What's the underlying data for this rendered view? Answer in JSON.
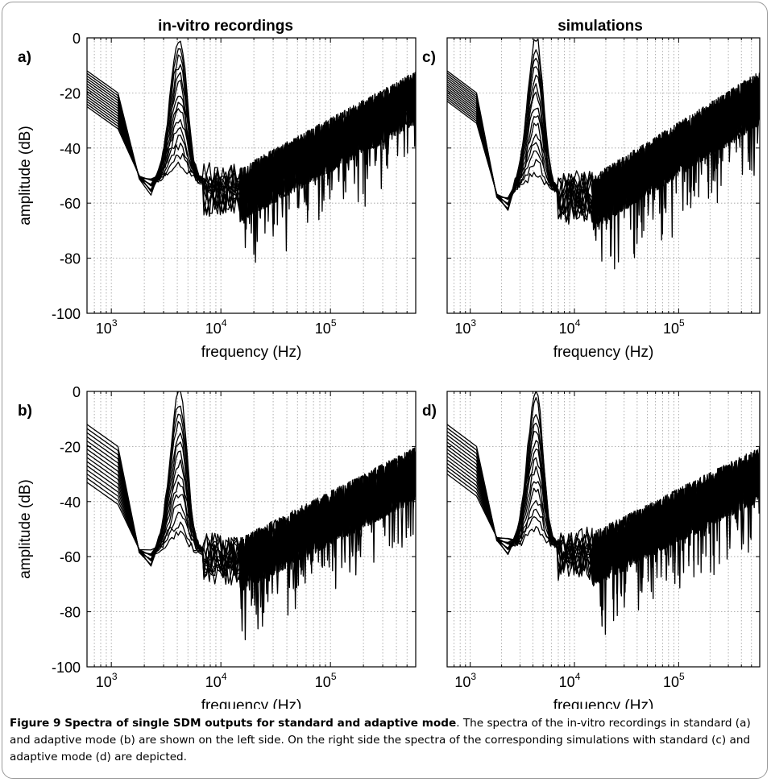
{
  "column_titles": [
    "in-vitro recordings",
    "simulations"
  ],
  "caption": {
    "label": "Figure 9 Spectra of single SDM outputs for standard and adaptive mode",
    "text": ". The spectra of the in-vitro recordings in standard (a) and adaptive mode (b) are shown on the left side. On the right side the spectra of the corresponding simulations with standard (c) and adaptive mode (d) are depicted."
  },
  "chart_data": [
    {
      "id": "a",
      "panel_label": "a)",
      "type": "line",
      "column": "in-vitro recordings",
      "xlabel": "frequency (Hz)",
      "ylabel": "amplitude (dB)",
      "xscale": "log",
      "xlim": [
        600,
        600000
      ],
      "ylim": [
        -100,
        0
      ],
      "yticks": [
        "0",
        "-20",
        "-40",
        "-60",
        "-80",
        "-100"
      ],
      "xticks": [
        {
          "base": "10",
          "exp": "3"
        },
        {
          "base": "10",
          "exp": "4"
        },
        {
          "base": "10",
          "exp": "5"
        }
      ],
      "grid": "dotted",
      "series_count": 15,
      "peak": {
        "freq_hz": 4200,
        "peak_db": 0,
        "low_end_db": [
          -12,
          -25
        ],
        "floor_db": -52,
        "tail_end_db": -22,
        "noise_db": 9
      },
      "lines_color": "#000000"
    },
    {
      "id": "c",
      "panel_label": "c)",
      "type": "line",
      "column": "simulations",
      "xlabel": "frequency (Hz)",
      "ylabel": "",
      "xscale": "log",
      "xlim": [
        600,
        600000
      ],
      "ylim": [
        -100,
        0
      ],
      "yticks": [],
      "xticks": [
        {
          "base": "10",
          "exp": "3"
        },
        {
          "base": "10",
          "exp": "4"
        },
        {
          "base": "10",
          "exp": "5"
        }
      ],
      "grid": "dotted",
      "series_count": 15,
      "peak": {
        "freq_hz": 4300,
        "peak_db": 0,
        "low_end_db": [
          -12,
          -23
        ],
        "floor_db": -55,
        "tail_end_db": -22,
        "noise_db": 9
      },
      "lines_color": "#000000"
    },
    {
      "id": "b",
      "panel_label": "b)",
      "type": "line",
      "column": "in-vitro recordings",
      "xlabel": "frequency (Hz)",
      "ylabel": "amplitude (dB)",
      "xscale": "log",
      "xlim": [
        600,
        600000
      ],
      "ylim": [
        -100,
        0
      ],
      "yticks": [
        "0",
        "-20",
        "-40",
        "-60",
        "-80",
        "-100"
      ],
      "xticks": [
        {
          "base": "10",
          "exp": "3"
        },
        {
          "base": "10",
          "exp": "4"
        },
        {
          "base": "10",
          "exp": "5"
        }
      ],
      "grid": "dotted",
      "series_count": 15,
      "peak": {
        "freq_hz": 4200,
        "peak_db": 0,
        "low_end_db": [
          -12,
          -33
        ],
        "floor_db": -58,
        "tail_end_db": -30,
        "noise_db": 9
      },
      "lines_color": "#000000"
    },
    {
      "id": "d",
      "panel_label": "d)",
      "type": "line",
      "column": "simulations",
      "xlabel": "frequency (Hz)",
      "ylabel": "",
      "xscale": "log",
      "xlim": [
        600,
        600000
      ],
      "ylim": [
        -100,
        0
      ],
      "yticks": [],
      "xticks": [
        {
          "base": "10",
          "exp": "3"
        },
        {
          "base": "10",
          "exp": "4"
        },
        {
          "base": "10",
          "exp": "5"
        }
      ],
      "grid": "dotted",
      "series_count": 15,
      "peak": {
        "freq_hz": 4300,
        "peak_db": 0,
        "low_end_db": [
          -12,
          -30
        ],
        "floor_db": -56,
        "tail_end_db": -30,
        "noise_db": 9
      },
      "lines_color": "#000000"
    }
  ]
}
